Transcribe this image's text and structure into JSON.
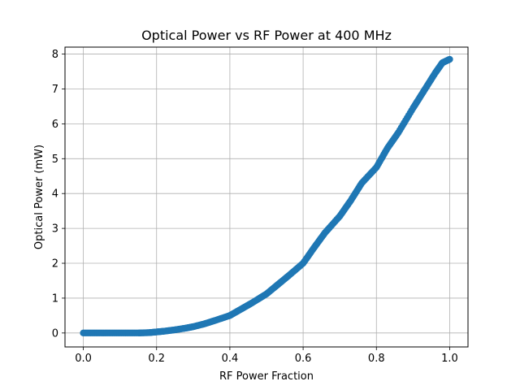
{
  "chart_data": {
    "type": "scatter",
    "title": "Optical Power vs RF Power at 400 MHz",
    "xlabel": "RF Power Fraction",
    "ylabel": "Optical Power (mW)",
    "xlim": [
      -0.05,
      1.05
    ],
    "ylim": [
      -0.4,
      8.2
    ],
    "xticks": [
      0.0,
      0.2,
      0.4,
      0.6,
      0.8,
      1.0
    ],
    "xtick_labels": [
      "0.0",
      "0.2",
      "0.4",
      "0.6",
      "0.8",
      "1.0"
    ],
    "yticks": [
      0,
      1,
      2,
      3,
      4,
      5,
      6,
      7,
      8
    ],
    "ytick_labels": [
      "0",
      "1",
      "2",
      "3",
      "4",
      "5",
      "6",
      "7",
      "8"
    ],
    "grid": true,
    "marker_color": "#1f77b4",
    "series": [
      {
        "x": [
          0.0,
          0.05,
          0.1,
          0.15,
          0.18,
          0.2,
          0.22,
          0.25,
          0.28,
          0.3,
          0.33,
          0.36,
          0.4,
          0.43,
          0.46,
          0.5,
          0.53,
          0.56,
          0.6,
          0.63,
          0.66,
          0.7,
          0.73,
          0.76,
          0.8,
          0.83,
          0.86,
          0.9,
          0.93,
          0.96,
          0.98,
          1.0
        ],
        "y": [
          0.0,
          0.0,
          0.0,
          0.0,
          0.01,
          0.03,
          0.05,
          0.09,
          0.14,
          0.18,
          0.26,
          0.36,
          0.5,
          0.68,
          0.86,
          1.12,
          1.38,
          1.64,
          2.0,
          2.45,
          2.88,
          3.35,
          3.8,
          4.3,
          4.75,
          5.3,
          5.75,
          6.45,
          6.95,
          7.45,
          7.75,
          7.85
        ]
      }
    ]
  }
}
